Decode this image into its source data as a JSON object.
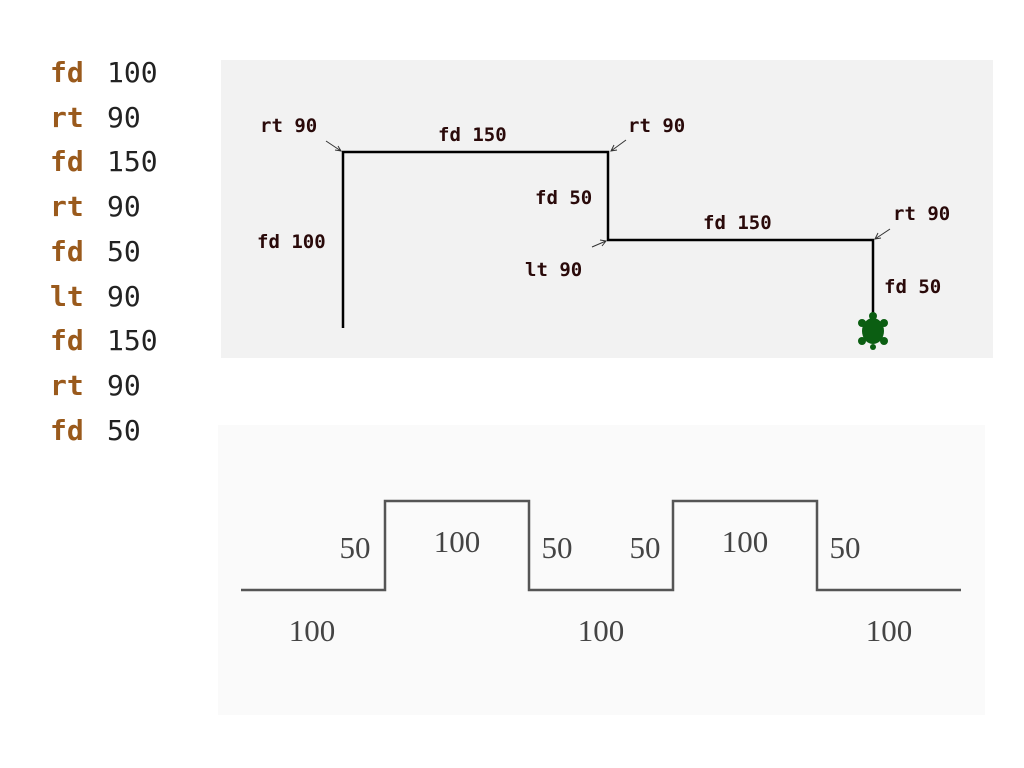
{
  "code": [
    {
      "cmd": "fd",
      "arg": "100"
    },
    {
      "cmd": "rt",
      "arg": "90"
    },
    {
      "cmd": "fd",
      "arg": "150"
    },
    {
      "cmd": "rt",
      "arg": "90"
    },
    {
      "cmd": "fd",
      "arg": "50"
    },
    {
      "cmd": "lt",
      "arg": "90"
    },
    {
      "cmd": "fd",
      "arg": "150"
    },
    {
      "cmd": "rt",
      "arg": "90"
    },
    {
      "cmd": "fd",
      "arg": "50"
    }
  ],
  "turtle_diagram": {
    "labels": [
      "rt 90",
      "fd 150",
      "rt 90",
      "fd 100",
      "fd 50",
      "lt 90",
      "fd 150",
      "rt 90",
      "fd 50"
    ]
  },
  "wave_diagram": {
    "labels": [
      "50",
      "100",
      "50",
      "50",
      "100",
      "50",
      "100",
      "100",
      "100"
    ]
  }
}
